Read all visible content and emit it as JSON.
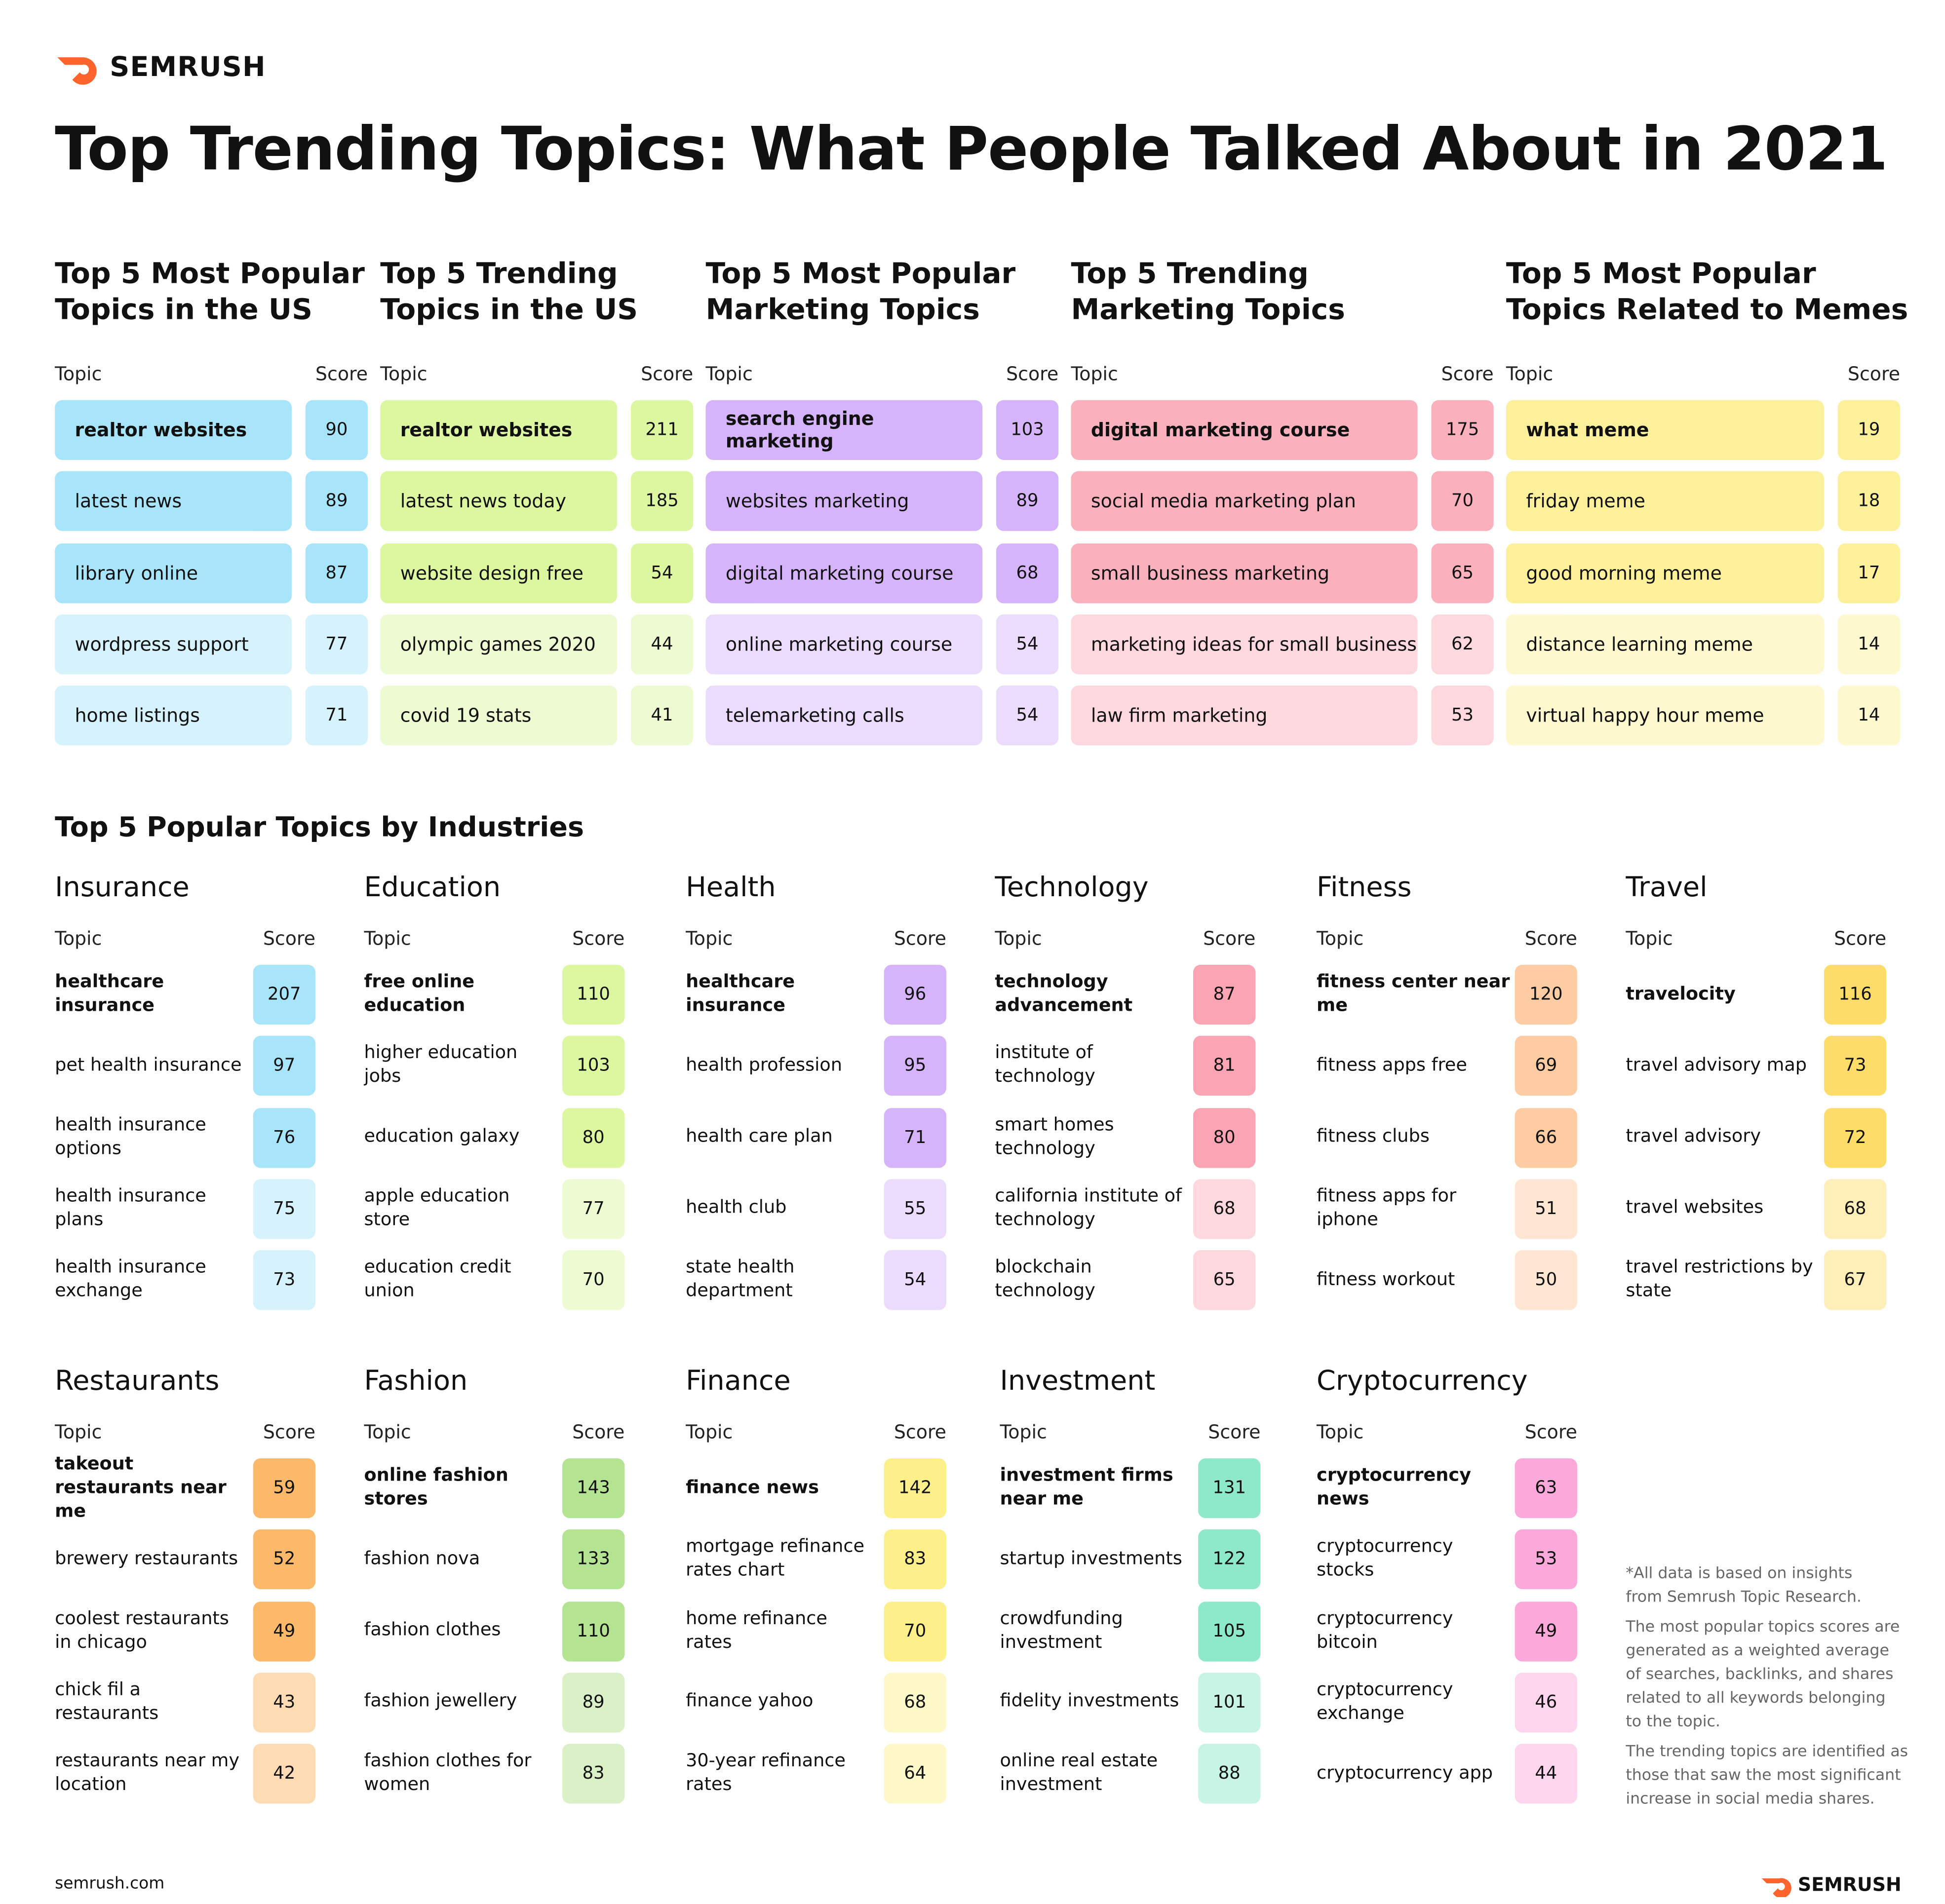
{
  "header": {
    "brand": "SEMRUSH",
    "title": "Top Trending Topics: What People Talked About in 2021"
  },
  "top_lists": [
    {
      "title": "Top 5 Most Popular\nTopics in the US",
      "topic_header": "Topic",
      "score_header": "Score",
      "color": "#a8e4fa",
      "light": "#d6f2fc",
      "rows": [
        [
          "realtor websites",
          90
        ],
        [
          "latest news",
          89
        ],
        [
          "library online",
          87
        ],
        [
          "wordpress support",
          77
        ],
        [
          "home listings",
          71
        ]
      ]
    },
    {
      "title": "Top 5 Trending\nTopics in the US",
      "topic_header": "Topic",
      "score_header": "Score",
      "color": "#dcf7a0",
      "light": "#eefbd2",
      "rows": [
        [
          "realtor websites",
          211
        ],
        [
          "latest news today",
          185
        ],
        [
          "website design free",
          54
        ],
        [
          "olympic games 2020",
          44
        ],
        [
          "covid 19 stats",
          41
        ]
      ]
    },
    {
      "title": "Top 5 Most Popular\nMarketing Topics",
      "topic_header": "Topic",
      "score_header": "Score",
      "color": "#d6b4fb",
      "light": "#ebdcfd",
      "rows": [
        [
          "search engine marketing",
          103
        ],
        [
          "websites marketing",
          89
        ],
        [
          "digital marketing course",
          68
        ],
        [
          "online marketing course",
          54
        ],
        [
          "telemarketing calls",
          54
        ]
      ]
    },
    {
      "title": "Top 5 Trending\nMarketing Topics",
      "topic_header": "Topic",
      "score_header": "Score",
      "color": "#fbb1bd",
      "light": "#fdd8de",
      "rows": [
        [
          "digital marketing course",
          175
        ],
        [
          "social media marketing plan",
          70
        ],
        [
          "small business marketing",
          65
        ],
        [
          "marketing ideas for small business",
          62
        ],
        [
          "law firm marketing",
          53
        ]
      ]
    },
    {
      "title": "Top 5 Most Popular\nTopics Related to Memes",
      "topic_header": "Topic",
      "score_header": "Score",
      "color": "#fdf09a",
      "light": "#fef8cf",
      "rows": [
        [
          "what meme",
          19
        ],
        [
          "friday meme",
          18
        ],
        [
          "good morning meme",
          17
        ],
        [
          "distance learning meme",
          14
        ],
        [
          "virtual happy hour meme",
          14
        ]
      ]
    }
  ],
  "industries": {
    "title": "Top 5 Popular Topics by Industries",
    "lists": [
      {
        "title": "Insurance",
        "topic_header": "Topic",
        "score_header": "Score",
        "color": "#a8e4fa",
        "light": "#d6f2fc",
        "rows": [
          [
            "healthcare\ninsurance",
            207
          ],
          [
            "pet health\ninsurance",
            97
          ],
          [
            "health insurance\noptions",
            76
          ],
          [
            "health insurance\nplans",
            75
          ],
          [
            "health insurance\nexchange",
            73
          ]
        ]
      },
      {
        "title": "Education",
        "topic_header": "Topic",
        "score_header": "Score",
        "color": "#dcf7a0",
        "light": "#eefbd2",
        "rows": [
          [
            "free online\neducation",
            110
          ],
          [
            "higher\neducation jobs",
            103
          ],
          [
            "education\ngalaxy",
            80
          ],
          [
            "apple education\nstore",
            77
          ],
          [
            "education\ncredit union",
            70
          ]
        ]
      },
      {
        "title": "Health",
        "topic_header": "Topic",
        "score_header": "Score",
        "color": "#d6b4fb",
        "light": "#ebdcfd",
        "rows": [
          [
            "healthcare\ninsurance",
            96
          ],
          [
            "health\nprofession",
            95
          ],
          [
            "health\ncare plan",
            71
          ],
          [
            "health club",
            55
          ],
          [
            "state health\ndepartment",
            54
          ]
        ]
      },
      {
        "title": "Technology",
        "topic_header": "Topic",
        "score_header": "Score",
        "color": "#fba5b4",
        "light": "#fdd8de",
        "rows": [
          [
            "technology\nadvancement",
            87
          ],
          [
            "institute\nof technology",
            81
          ],
          [
            "smart homes\ntechnology",
            80
          ],
          [
            "california institute\nof technology",
            68
          ],
          [
            "blockchain\ntechnology",
            65
          ]
        ]
      },
      {
        "title": "Fitness",
        "topic_header": "Topic",
        "score_header": "Score",
        "color": "#fdcca2",
        "light": "#fee6d2",
        "rows": [
          [
            "fitness center\nnear me",
            120
          ],
          [
            "fitness apps\nfree",
            69
          ],
          [
            "fitness clubs",
            66
          ],
          [
            "fitness apps\nfor iphone",
            51
          ],
          [
            "fitness workout",
            50
          ]
        ]
      },
      {
        "title": "Travel",
        "topic_header": "Topic",
        "score_header": "Score",
        "color": "#fddc6a",
        "light": "#feeeb8",
        "rows": [
          [
            "travelocity",
            116
          ],
          [
            "travel advisory\nmap",
            73
          ],
          [
            "travel advisory",
            72
          ],
          [
            "travel websites",
            68
          ],
          [
            "travel restrictions\nby state",
            67
          ]
        ]
      },
      {
        "title": "Restaurants",
        "topic_header": "Topic",
        "score_header": "Score",
        "color": "#fdb96a",
        "light": "#fddcb4",
        "rows": [
          [
            "takeout restaurants\nnear me",
            59
          ],
          [
            "brewery\nrestaurants",
            52
          ],
          [
            "coolest restaurants\nin chicago",
            49
          ],
          [
            "chick fil\na restaurants",
            43
          ],
          [
            "restaurants near\nmy location",
            42
          ]
        ]
      },
      {
        "title": "Fashion",
        "topic_header": "Topic",
        "score_header": "Score",
        "color": "#b4e391",
        "light": "#daf1c8",
        "rows": [
          [
            "online fashion\nstores",
            143
          ],
          [
            "fashion nova",
            133
          ],
          [
            "fashion clothes",
            110
          ],
          [
            "fashion\njewellery",
            89
          ],
          [
            "fashion clothes\nfor women",
            83
          ]
        ]
      },
      {
        "title": "Finance",
        "topic_header": "Topic",
        "score_header": "Score",
        "color": "#fdf08a",
        "light": "#fef8c8",
        "rows": [
          [
            "finance news",
            142
          ],
          [
            "mortgage refinance\nrates chart",
            83
          ],
          [
            "home refinance\nrates",
            70
          ],
          [
            "finance yahoo",
            68
          ],
          [
            "30-year\nrefinance rates",
            64
          ]
        ]
      },
      {
        "title": "Investment",
        "topic_header": "Topic",
        "score_header": "Score",
        "color": "#8ee9cb",
        "light": "#c8f4e5",
        "rows": [
          [
            "investment\nfirms near me",
            131
          ],
          [
            "startup\ninvestments",
            122
          ],
          [
            "crowdfunding\ninvestment",
            105
          ],
          [
            "fidelity\ninvestments",
            101
          ],
          [
            "online real estate\ninvestment",
            88
          ]
        ]
      },
      {
        "title": "Cryptocurrency",
        "topic_header": "Topic",
        "score_header": "Score",
        "color": "#fba8da",
        "light": "#fdd6ee",
        "rows": [
          [
            "cryptocurrency\nnews",
            63
          ],
          [
            "cryptocurrency\nstocks",
            53
          ],
          [
            "cryptocurrency\nbitcoin",
            49
          ],
          [
            "cryptocurrency\nexchange",
            46
          ],
          [
            "cryptocurrency\napp",
            44
          ]
        ]
      }
    ]
  },
  "notes": [
    "*All data is based on insights\nfrom Semrush Topic Research.",
    "The most popular topics scores are\ngenerated as a weighted average\nof searches, backlinks, and shares\nrelated to all keywords belonging\nto the topic.",
    "The trending topics are identified as\nthose that saw the most significant\nincrease in social media shares."
  ],
  "footer": {
    "site": "semrush.com",
    "brand": "SEMRUSH"
  }
}
